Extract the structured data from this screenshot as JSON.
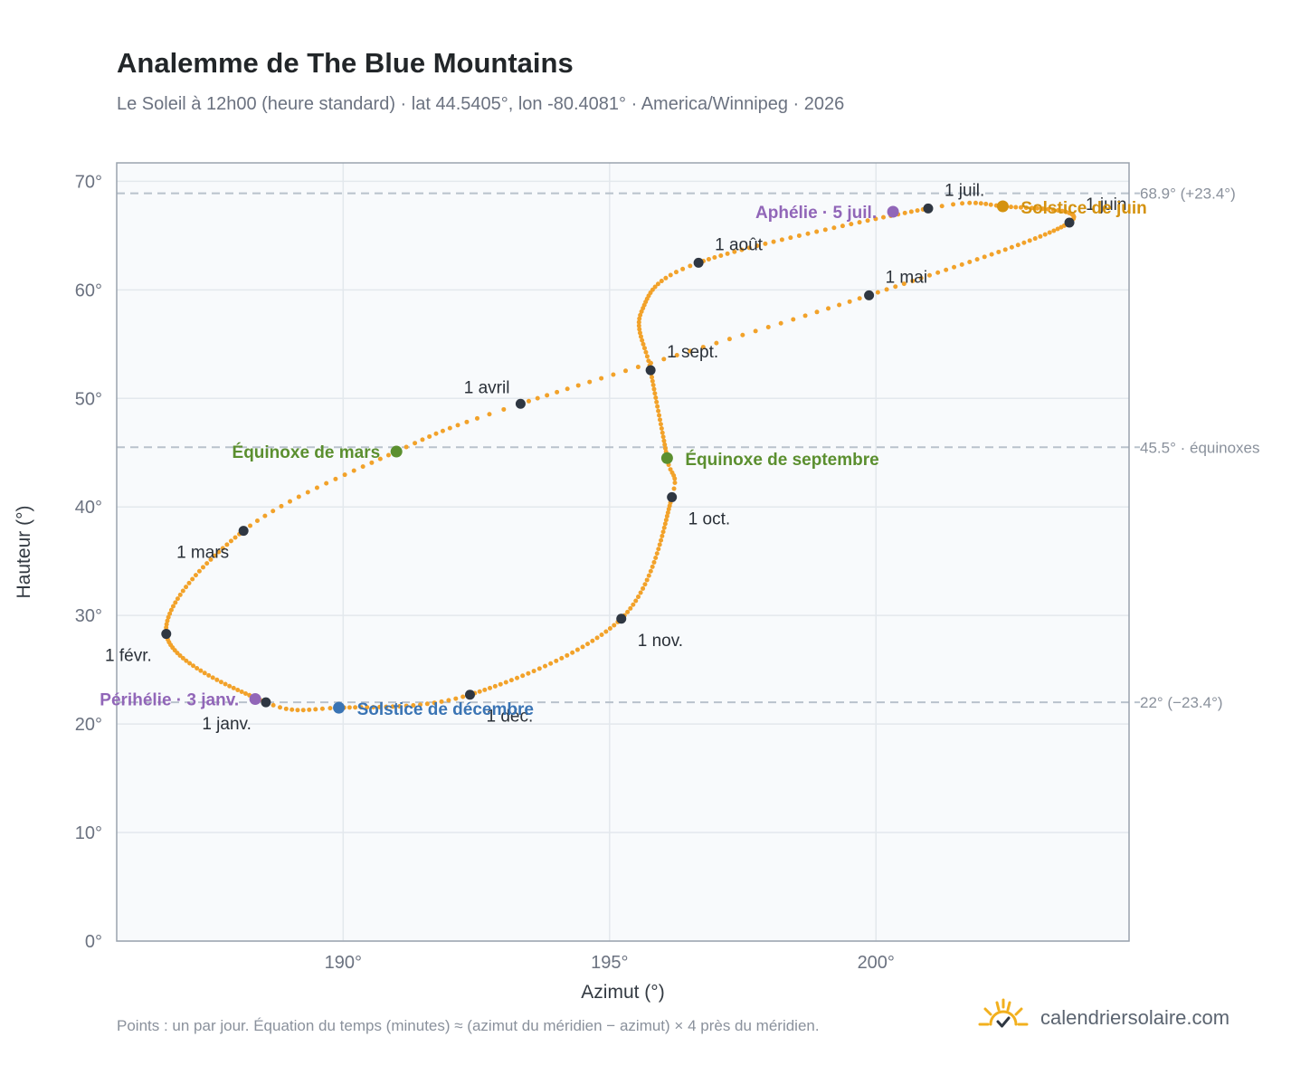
{
  "header": {
    "title": "Analemme de The Blue Mountains",
    "subtitle": "Le Soleil à 12h00 (heure standard) · lat 44.5405°, lon -80.4081° · America/Winnipeg · 2026"
  },
  "footer": {
    "note": "Points : un par jour. Équation du temps (minutes) ≈ (azimut du méridien − azimut) × 4 près du méridien.",
    "brand": "calendriersolaire.com",
    "brand_icon": "sun-check-icon"
  },
  "colors": {
    "curve": "#f2a22a",
    "month_marker": "#2f3742",
    "equinox": "#5b8f2f",
    "june_solstice": "#d4920f",
    "december_solstice": "#3a74b4",
    "apsides": "#9166b8",
    "reference_line": "#b9c2cc",
    "plot_background": "#f8fafc",
    "plot_border": "#9aa3ae",
    "grid": "#e3e8ed"
  },
  "chart_data": {
    "type": "scatter",
    "xlabel": "Azimut (°)",
    "ylabel": "Hauteur (°)",
    "xlim": [
      185.75,
      204.75
    ],
    "ylim": [
      0,
      71.7
    ],
    "x_ticks": [
      190,
      195,
      200
    ],
    "x_tick_labels": [
      "190°",
      "195°",
      "200°"
    ],
    "y_ticks": [
      0,
      10,
      20,
      30,
      40,
      50,
      60,
      70
    ],
    "y_tick_labels": [
      "0°",
      "10°",
      "20°",
      "30°",
      "40°",
      "50°",
      "60°",
      "70°"
    ],
    "grid": true,
    "reference_lines": [
      {
        "y": 68.9,
        "label": "68.9° (+23.4°)"
      },
      {
        "y": 45.5,
        "label": "45.5° · équinoxes"
      },
      {
        "y": 22.0,
        "label": "22° (−23.4°)"
      }
    ],
    "month_markers": [
      {
        "label": "1 janv.",
        "x": 188.55,
        "y": 22.0,
        "label_pos": "below-left"
      },
      {
        "label": "1 févr.",
        "x": 186.68,
        "y": 28.3,
        "label_pos": "below-left"
      },
      {
        "label": "1 mars",
        "x": 188.13,
        "y": 37.8,
        "label_pos": "below-left"
      },
      {
        "label": "1 avril",
        "x": 193.33,
        "y": 49.5,
        "label_pos": "above-left"
      },
      {
        "label": "1 mai",
        "x": 199.87,
        "y": 59.5,
        "label_pos": "above-right"
      },
      {
        "label": "1 juin",
        "x": 203.63,
        "y": 66.2,
        "label_pos": "above-right"
      },
      {
        "label": "1 juil.",
        "x": 200.98,
        "y": 67.5,
        "label_pos": "above-right"
      },
      {
        "label": "1 août",
        "x": 196.67,
        "y": 62.5,
        "label_pos": "above-right"
      },
      {
        "label": "1 sept.",
        "x": 195.77,
        "y": 52.6,
        "label_pos": "above-right"
      },
      {
        "label": "1 oct.",
        "x": 196.17,
        "y": 40.9,
        "label_pos": "below-right"
      },
      {
        "label": "1 nov.",
        "x": 195.22,
        "y": 29.7,
        "label_pos": "below-right"
      },
      {
        "label": "1 déc.",
        "x": 192.38,
        "y": 22.7,
        "label_pos": "below-right"
      }
    ],
    "events": [
      {
        "label": "Solstice de juin",
        "x": 202.38,
        "y": 67.7,
        "color_key": "june_solstice",
        "label_pos": "right"
      },
      {
        "label": "Aphélie · 5 juil.",
        "x": 200.32,
        "y": 67.2,
        "color_key": "apsides",
        "label_pos": "left"
      },
      {
        "label": "Équinoxe de mars",
        "x": 191.0,
        "y": 45.1,
        "color_key": "equinox",
        "label_pos": "left"
      },
      {
        "label": "Équinoxe de septembre",
        "x": 196.08,
        "y": 44.5,
        "color_key": "equinox",
        "label_pos": "right"
      },
      {
        "label": "Périhélie · 3 janv.",
        "x": 188.35,
        "y": 22.3,
        "color_key": "apsides",
        "label_pos": "left"
      },
      {
        "label": "Solstice de décembre",
        "x": 189.92,
        "y": 21.5,
        "color_key": "december_solstice",
        "label_pos": "right"
      }
    ],
    "series": [
      {
        "points_per": "day",
        "year": 2026,
        "control_points": [
          {
            "doy": 1,
            "x": 188.55,
            "y": 22.0
          },
          {
            "doy": 32,
            "x": 186.68,
            "y": 28.3
          },
          {
            "doy": 60,
            "x": 188.13,
            "y": 37.8
          },
          {
            "doy": 78,
            "x": 191.0,
            "y": 45.1
          },
          {
            "doy": 91,
            "x": 193.33,
            "y": 49.5
          },
          {
            "doy": 121,
            "x": 199.87,
            "y": 59.5
          },
          {
            "doy": 152,
            "x": 203.63,
            "y": 66.2
          },
          {
            "doy": 172,
            "x": 202.38,
            "y": 67.7
          },
          {
            "doy": 182,
            "x": 200.98,
            "y": 67.5
          },
          {
            "doy": 213,
            "x": 196.67,
            "y": 62.5
          },
          {
            "doy": 229,
            "x": 195.6,
            "y": 58.0
          },
          {
            "doy": 244,
            "x": 195.77,
            "y": 52.6
          },
          {
            "doy": 266,
            "x": 196.08,
            "y": 44.5
          },
          {
            "doy": 274,
            "x": 196.17,
            "y": 40.9
          },
          {
            "doy": 305,
            "x": 195.22,
            "y": 29.7
          },
          {
            "doy": 335,
            "x": 192.38,
            "y": 22.7
          },
          {
            "doy": 355,
            "x": 189.92,
            "y": 21.5
          },
          {
            "doy": 366,
            "x": 188.55,
            "y": 22.0
          }
        ]
      }
    ]
  }
}
